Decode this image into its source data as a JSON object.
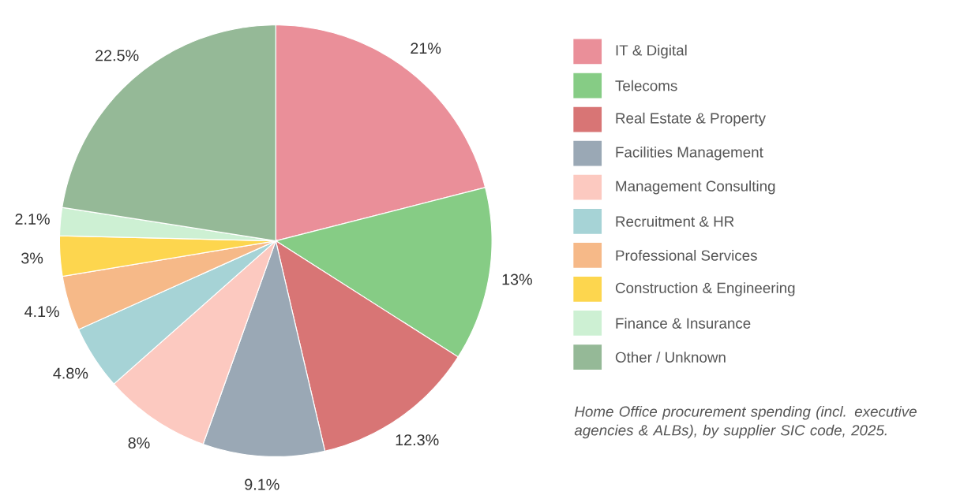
{
  "chart_data": {
    "type": "pie",
    "categories": [
      "IT & Digital",
      "Telecoms",
      "Real Estate & Property",
      "Facilities Management",
      "Management Consulting",
      "Recruitment & HR",
      "Professional Services",
      "Construction & Engineering",
      "Finance & Insurance",
      "Other / Unknown"
    ],
    "values": [
      21,
      13,
      12.3,
      9.1,
      8,
      4.8,
      4.1,
      3,
      2.1,
      22.5
    ],
    "value_labels": [
      "21%",
      "13%",
      "12.3%",
      "9.1%",
      "8%",
      "4.8%",
      "4.1%",
      "3%",
      "2.1%",
      "22.5%"
    ],
    "colors": [
      "#ea8f99",
      "#86cc85",
      "#d87575",
      "#9aa8b5",
      "#fcc9c0",
      "#a6d3d6",
      "#f6b988",
      "#fdd64e",
      "#cdf0d3",
      "#95b997"
    ],
    "legend": "right",
    "annotations": [
      "*Home Office procurement spending (incl. executive agencies & ALBs), by supplier SIC code, 2025.*"
    ]
  }
}
